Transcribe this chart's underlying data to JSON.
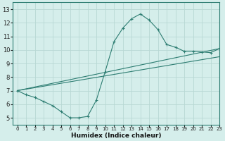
{
  "line1_x": [
    0,
    1,
    2,
    3,
    4,
    5,
    6,
    7,
    8,
    9,
    10,
    11,
    12,
    13,
    14,
    15,
    16,
    17,
    18,
    19,
    20,
    21,
    22,
    23
  ],
  "line1_y": [
    7.0,
    6.7,
    6.5,
    6.2,
    5.9,
    5.45,
    5.0,
    5.0,
    5.1,
    6.3,
    8.4,
    10.6,
    11.6,
    12.3,
    12.65,
    12.2,
    11.5,
    10.4,
    10.2,
    9.9,
    9.9,
    9.85,
    9.8,
    10.1
  ],
  "line2_x": [
    0,
    23
  ],
  "line2_y": [
    7.0,
    10.1
  ],
  "line3_x": [
    0,
    23
  ],
  "line3_y": [
    7.0,
    9.5
  ],
  "line_color": "#2d7d72",
  "bg_color": "#d5eeeb",
  "grid_color": "#b8d8d4",
  "xlabel": "Humidex (Indice chaleur)",
  "xlim": [
    -0.5,
    23
  ],
  "ylim": [
    4.5,
    13.5
  ],
  "xticks": [
    0,
    1,
    2,
    3,
    4,
    5,
    6,
    7,
    8,
    9,
    10,
    11,
    12,
    13,
    14,
    15,
    16,
    17,
    18,
    19,
    20,
    21,
    22,
    23
  ],
  "yticks": [
    5,
    6,
    7,
    8,
    9,
    10,
    11,
    12,
    13
  ],
  "xlabel_fontsize": 6.5,
  "tick_fontsize_x": 5,
  "tick_fontsize_y": 6
}
